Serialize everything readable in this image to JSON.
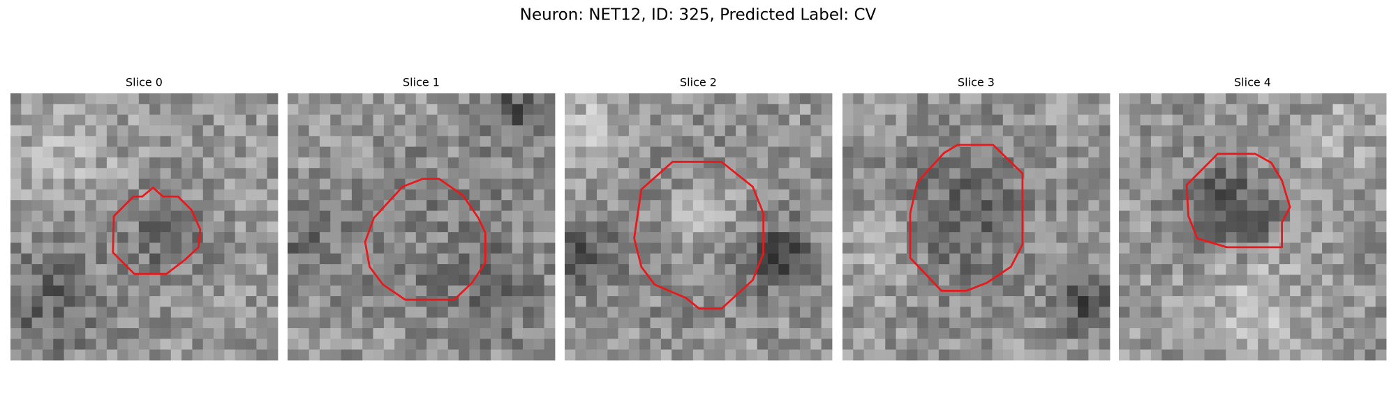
{
  "header": {
    "title": "Neuron: NET12, ID: 325, Predicted Label: CV"
  },
  "panels": [
    {
      "title": "Slice 0"
    },
    {
      "title": "Slice 1"
    },
    {
      "title": "Slice 2"
    },
    {
      "title": "Slice 3"
    },
    {
      "title": "Slice 4"
    }
  ]
}
